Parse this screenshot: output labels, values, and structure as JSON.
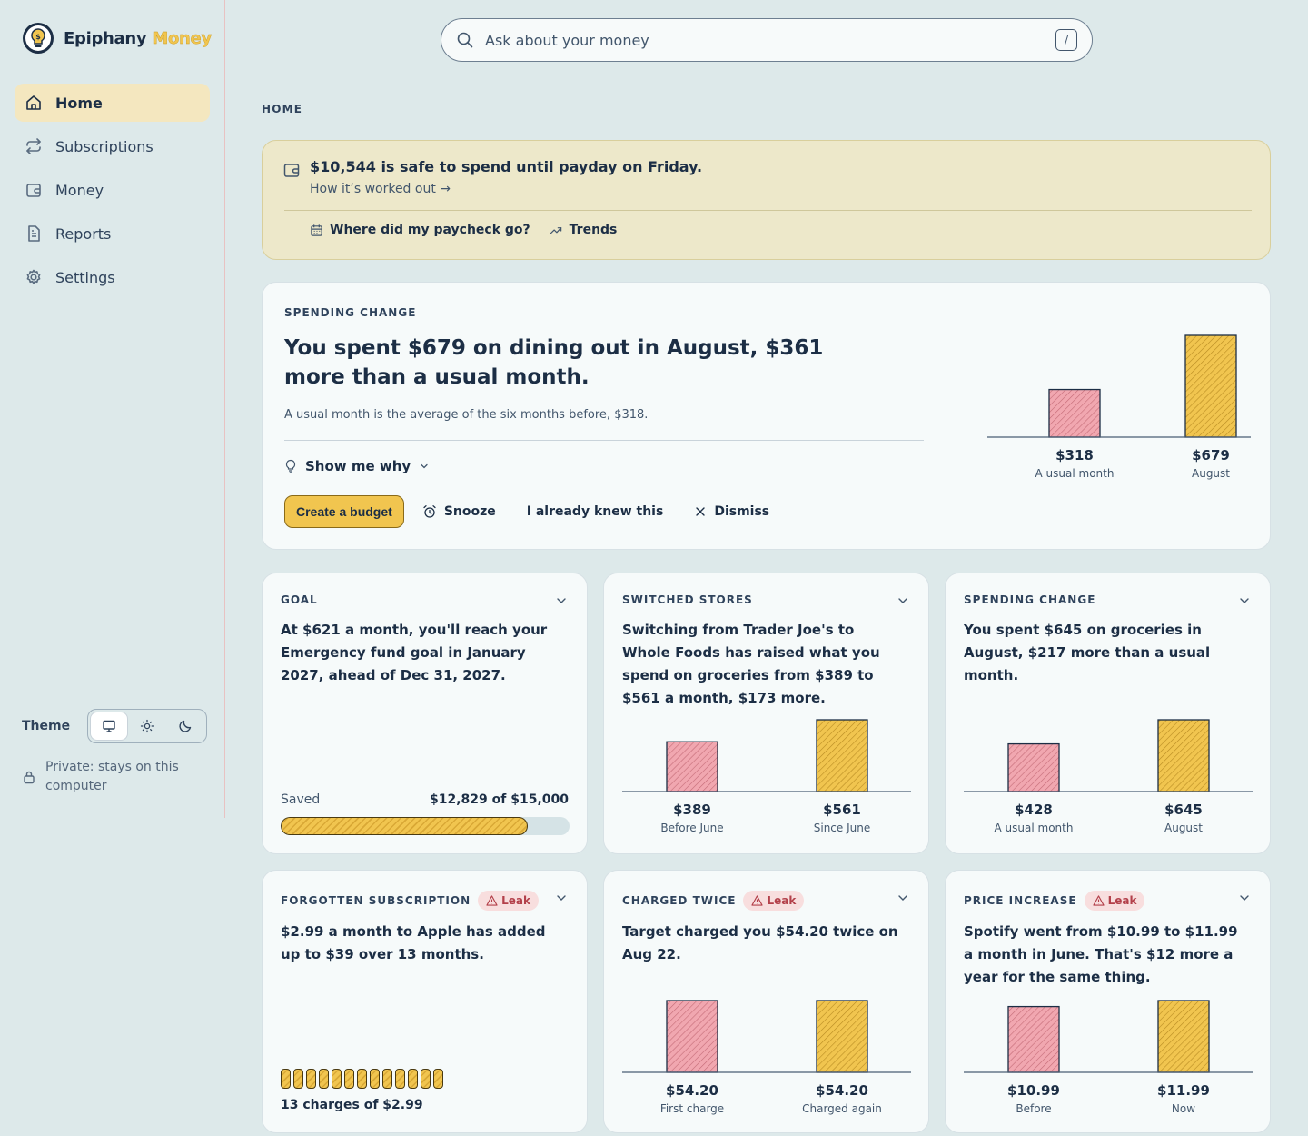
{
  "app": {
    "name_a": "Epiphany",
    "name_b": "Money"
  },
  "nav": [
    {
      "label": "Home",
      "icon": "home-icon",
      "active": true
    },
    {
      "label": "Subscriptions",
      "icon": "repeat-icon"
    },
    {
      "label": "Money",
      "icon": "wallet-icon"
    },
    {
      "label": "Reports",
      "icon": "document-icon"
    },
    {
      "label": "Settings",
      "icon": "gear-icon"
    }
  ],
  "theme": {
    "label": "Theme",
    "options": [
      "system",
      "light",
      "dark"
    ],
    "selected": "system"
  },
  "privacy": "Private: stays on this computer",
  "search": {
    "placeholder": "Ask about your money",
    "shortcut": "/"
  },
  "breadcrumb": "HOME",
  "safe": {
    "title": "$10,544 is safe to spend until payday on Friday.",
    "link": "How it’s worked out →",
    "paycheck": "Where did my paycheck go?",
    "trends": "Trends"
  },
  "hero": {
    "label": "SPENDING CHANGE",
    "title": "You spent $679 on dining out in August, $361 more than a usual month.",
    "sub": "A usual month is the average of the six months before, $318.",
    "why": "Show me why",
    "actions": {
      "budget": "Create a budget",
      "snooze": "Snooze",
      "knew": "I already knew this",
      "dismiss": "Dismiss"
    },
    "chart": {
      "values": [
        318,
        679
      ],
      "value_labels": [
        "$318",
        "$679"
      ],
      "captions": [
        "A usual month",
        "August"
      ]
    }
  },
  "cards": {
    "goal": {
      "label": "GOAL",
      "title": "At $621 a month, you'll reach your Emergency fund goal in January 2027, ahead of Dec 31, 2027.",
      "saved_label": "Saved",
      "saved_value": "$12,829 of $15,000",
      "progress": 0.855
    },
    "switched": {
      "label": "SWITCHED STORES",
      "title": "Switching from Trader Joe's to Whole Foods has raised what you spend on groceries from $389 to $561 a month, $173 more.",
      "chart": {
        "values": [
          389,
          561
        ],
        "value_labels": [
          "$389",
          "$561"
        ],
        "captions": [
          "Before June",
          "Since June"
        ]
      }
    },
    "groceries": {
      "label": "SPENDING CHANGE",
      "title": "You spent $645 on groceries in August, $217 more than a usual month.",
      "chart": {
        "values": [
          428,
          645
        ],
        "value_labels": [
          "$428",
          "$645"
        ],
        "captions": [
          "A usual month",
          "August"
        ]
      }
    },
    "forgotten": {
      "label": "FORGOTTEN SUBSCRIPTION",
      "badge": "Leak",
      "title": "$2.99 a month to Apple has added up to $39 over 13 months.",
      "charges": 13,
      "caption": "13 charges of $2.99"
    },
    "twice": {
      "label": "CHARGED TWICE",
      "badge": "Leak",
      "title": "Target charged you $54.20 twice on Aug 22.",
      "chart": {
        "values": [
          54.2,
          54.2
        ],
        "value_labels": [
          "$54.20",
          "$54.20"
        ],
        "captions": [
          "First charge",
          "Charged again"
        ]
      }
    },
    "price": {
      "label": "PRICE INCREASE",
      "badge": "Leak",
      "title": "Spotify went from $10.99 to $11.99 a month in June. That's $12 more a year for the same thing.",
      "chart": {
        "values": [
          10.99,
          11.99
        ],
        "value_labels": [
          "$10.99",
          "$11.99"
        ],
        "captions": [
          "Before",
          "Now"
        ]
      }
    }
  },
  "colors": {
    "pink": "#f0a3ac",
    "yellow": "#f1c54f",
    "ink": "#1c2e45",
    "background": "#dde9ea"
  }
}
